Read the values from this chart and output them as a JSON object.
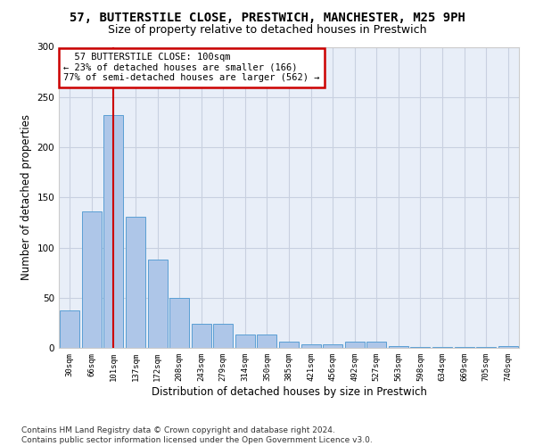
{
  "title1": "57, BUTTERSTILE CLOSE, PRESTWICH, MANCHESTER, M25 9PH",
  "title2": "Size of property relative to detached houses in Prestwich",
  "xlabel": "Distribution of detached houses by size in Prestwich",
  "ylabel": "Number of detached properties",
  "bar_values": [
    37,
    136,
    232,
    131,
    88,
    50,
    24,
    24,
    13,
    13,
    6,
    4,
    4,
    6,
    6,
    2,
    1,
    1,
    1,
    1,
    2
  ],
  "bar_labels": [
    "30sqm",
    "66sqm",
    "101sqm",
    "137sqm",
    "172sqm",
    "208sqm",
    "243sqm",
    "279sqm",
    "314sqm",
    "350sqm",
    "385sqm",
    "421sqm",
    "456sqm",
    "492sqm",
    "527sqm",
    "563sqm",
    "598sqm",
    "634sqm",
    "669sqm",
    "705sqm",
    "740sqm"
  ],
  "bar_color": "#aec6e8",
  "bar_edge_color": "#5a9fd4",
  "vline_x": 2,
  "vline_color": "#cc0000",
  "annotation_line1": "  57 BUTTERSTILE CLOSE: 100sqm",
  "annotation_line2": "← 23% of detached houses are smaller (166)",
  "annotation_line3": "77% of semi-detached houses are larger (562) →",
  "annotation_box_color": "#ffffff",
  "annotation_box_edge": "#cc0000",
  "ylim": [
    0,
    300
  ],
  "yticks": [
    0,
    50,
    100,
    150,
    200,
    250,
    300
  ],
  "footnote": "Contains HM Land Registry data © Crown copyright and database right 2024.\nContains public sector information licensed under the Open Government Licence v3.0.",
  "bg_color": "#e8eef8",
  "grid_color": "#c8d0e0",
  "title1_fontsize": 10,
  "title2_fontsize": 9,
  "xlabel_fontsize": 8.5,
  "ylabel_fontsize": 8.5,
  "footnote_fontsize": 6.5,
  "annot_fontsize": 7.5
}
